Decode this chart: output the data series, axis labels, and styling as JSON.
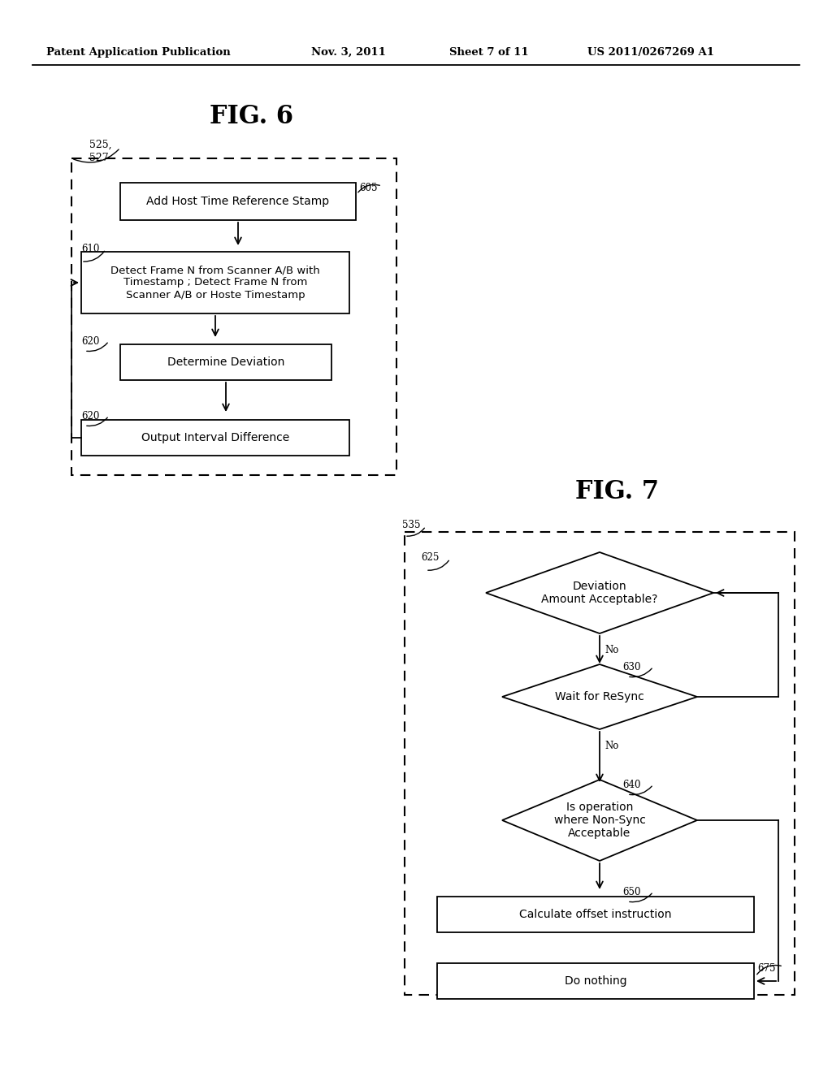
{
  "bg_color": "#ffffff",
  "header_text": "Patent Application Publication",
  "header_date": "Nov. 3, 2011",
  "header_sheet": "Sheet 7 of 11",
  "header_patent": "US 2011/0267269 A1",
  "fig6_title": "FIG. 6",
  "fig7_title": "FIG. 7",
  "node605": "605",
  "node610": "610",
  "node620a": "620",
  "node620b": "620",
  "node625": "625",
  "node630": "630",
  "node640": "640",
  "node650": "650",
  "node675": "675",
  "box605_text": "Add Host Time Reference Stamp",
  "box610_text": "Detect Frame N from Scanner A/B with\nTimestamp ; Detect Frame N from\nScanner A/B or Hoste Timestamp",
  "box620a_text": "Determine Deviation",
  "box620b_text": "Output Interval Difference",
  "diamond625_text": "Deviation\nAmount Acceptable?",
  "diamond630_text": "Wait for ReSync",
  "diamond640_text": "Is operation\nwhere Non-Sync\nAcceptable",
  "box650_text": "Calculate offset instruction",
  "box675_text": "Do nothing"
}
